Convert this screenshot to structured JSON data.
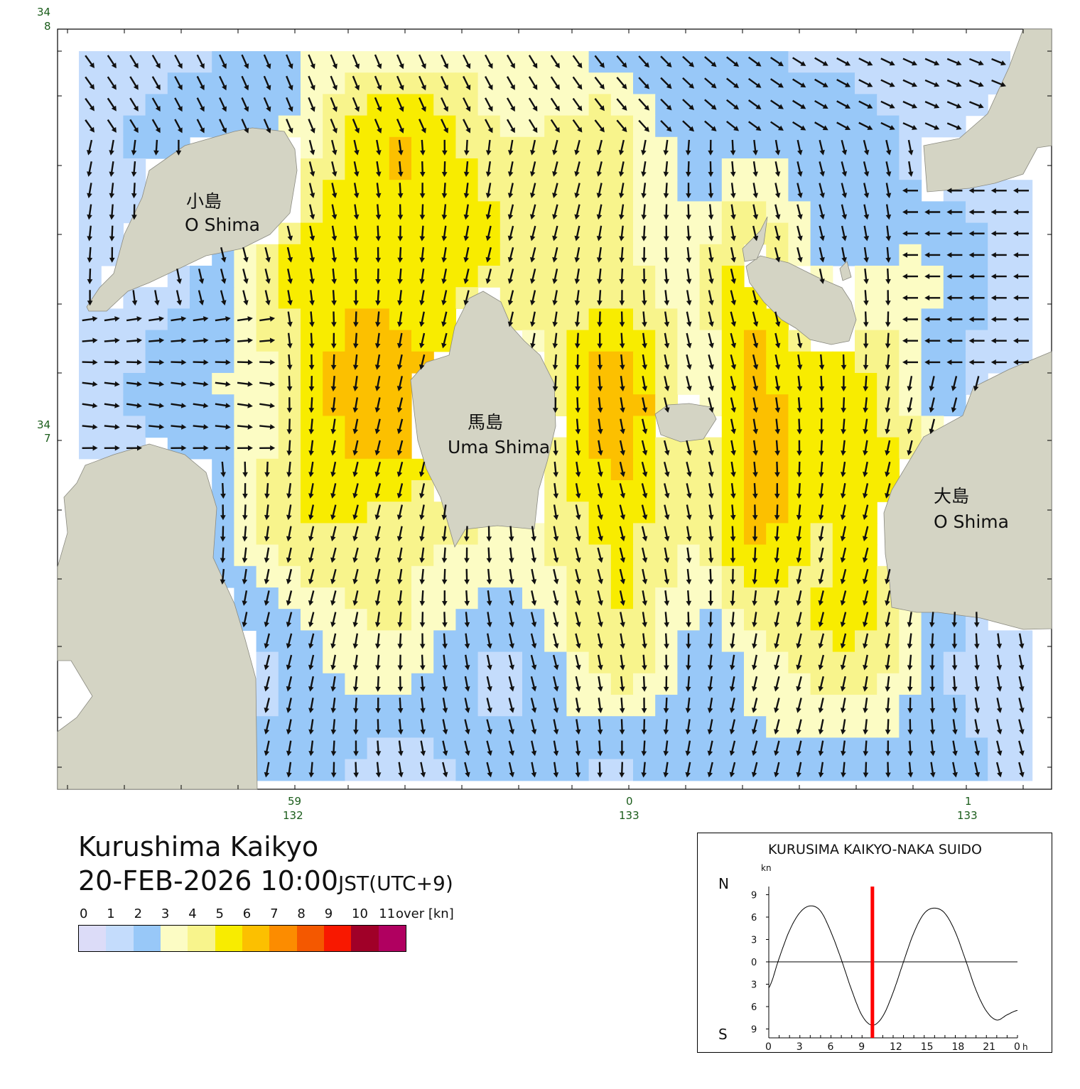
{
  "map": {
    "axes": {
      "lat_top_deg": "34",
      "lat_top_min": "8",
      "lat_mid_deg": "34",
      "lat_mid_min": "7",
      "lon1_min": "59",
      "lon1_deg": "132",
      "lon2_min": "0",
      "lon2_deg": "133",
      "lon3_min": "1",
      "lon3_deg": "133"
    },
    "islands": {
      "koshima_jp": "小島",
      "koshima_en": "O Shima",
      "umashima_jp": "馬島",
      "umashima_en": "Uma Shima",
      "oshima_jp": "大島",
      "oshima_en": "O Shima"
    },
    "land_color": "#d4d4c4",
    "water_color": "#dcdcf8"
  },
  "title": {
    "place": "Kurushima Kaikyo",
    "datetime": "20-FEB-2026 10:00",
    "timezone": "JST(UTC+9)"
  },
  "legend": {
    "labels": [
      "0",
      "1",
      "2",
      "3",
      "4",
      "5",
      "6",
      "7",
      "8",
      "9",
      "10",
      "11"
    ],
    "over_label": "over [kn]",
    "colors": [
      "#dcdcf8",
      "#c4dcfc",
      "#98c8f8",
      "#fcfcc4",
      "#f8f48c",
      "#f8ec00",
      "#fcc000",
      "#fc8c00",
      "#f45800",
      "#f81800",
      "#a00028",
      "#b00060"
    ]
  },
  "tide_panel": {
    "title": "KURUSIMA KAIKYO-NAKA SUIDO",
    "unit": "kn",
    "north_label": "N",
    "south_label": "S",
    "y_ticks": [
      "9",
      "6",
      "3",
      "0",
      "3",
      "6",
      "9"
    ],
    "x_ticks": [
      "0",
      "3",
      "6",
      "9",
      "12",
      "15",
      "18",
      "21",
      "0"
    ],
    "x_unit": "h",
    "current_hour": 10,
    "series_hours": [
      0,
      1,
      2,
      3,
      4,
      5,
      6,
      7,
      8,
      9,
      10,
      11,
      12,
      13,
      14,
      15,
      16,
      17,
      18,
      19,
      20,
      21,
      22,
      23,
      24
    ],
    "series_kn": [
      -3.5,
      0.5,
      4.2,
      6.6,
      7.5,
      6.8,
      4.0,
      0.3,
      -3.8,
      -7.2,
      -8.5,
      -7.3,
      -4.1,
      0.0,
      3.9,
      6.5,
      7.2,
      6.5,
      4.0,
      0.2,
      -3.8,
      -6.6,
      -7.8,
      -7.1,
      -6.5
    ]
  }
}
